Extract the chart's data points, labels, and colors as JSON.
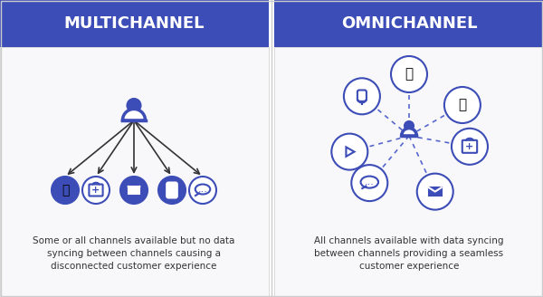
{
  "bg_color": "#ffffff",
  "header_color": "#3d4db7",
  "header_text_color": "#ffffff",
  "header_left": "MULTICHANNEL",
  "header_right": "OMNICHANNEL",
  "divider_color": "#cccccc",
  "icon_fill": "#3d4db7",
  "icon_stroke": "#3d4db7",
  "circle_color": "#3d4db7",
  "dashed_color": "#5566cc",
  "desc_left": "Some or all channels available but no data\nsyncing between channels causing a\ndisconnected customer experience",
  "desc_right": "All channels available with data syncing\nbetween channels providing a seamless\ncustomer experience"
}
